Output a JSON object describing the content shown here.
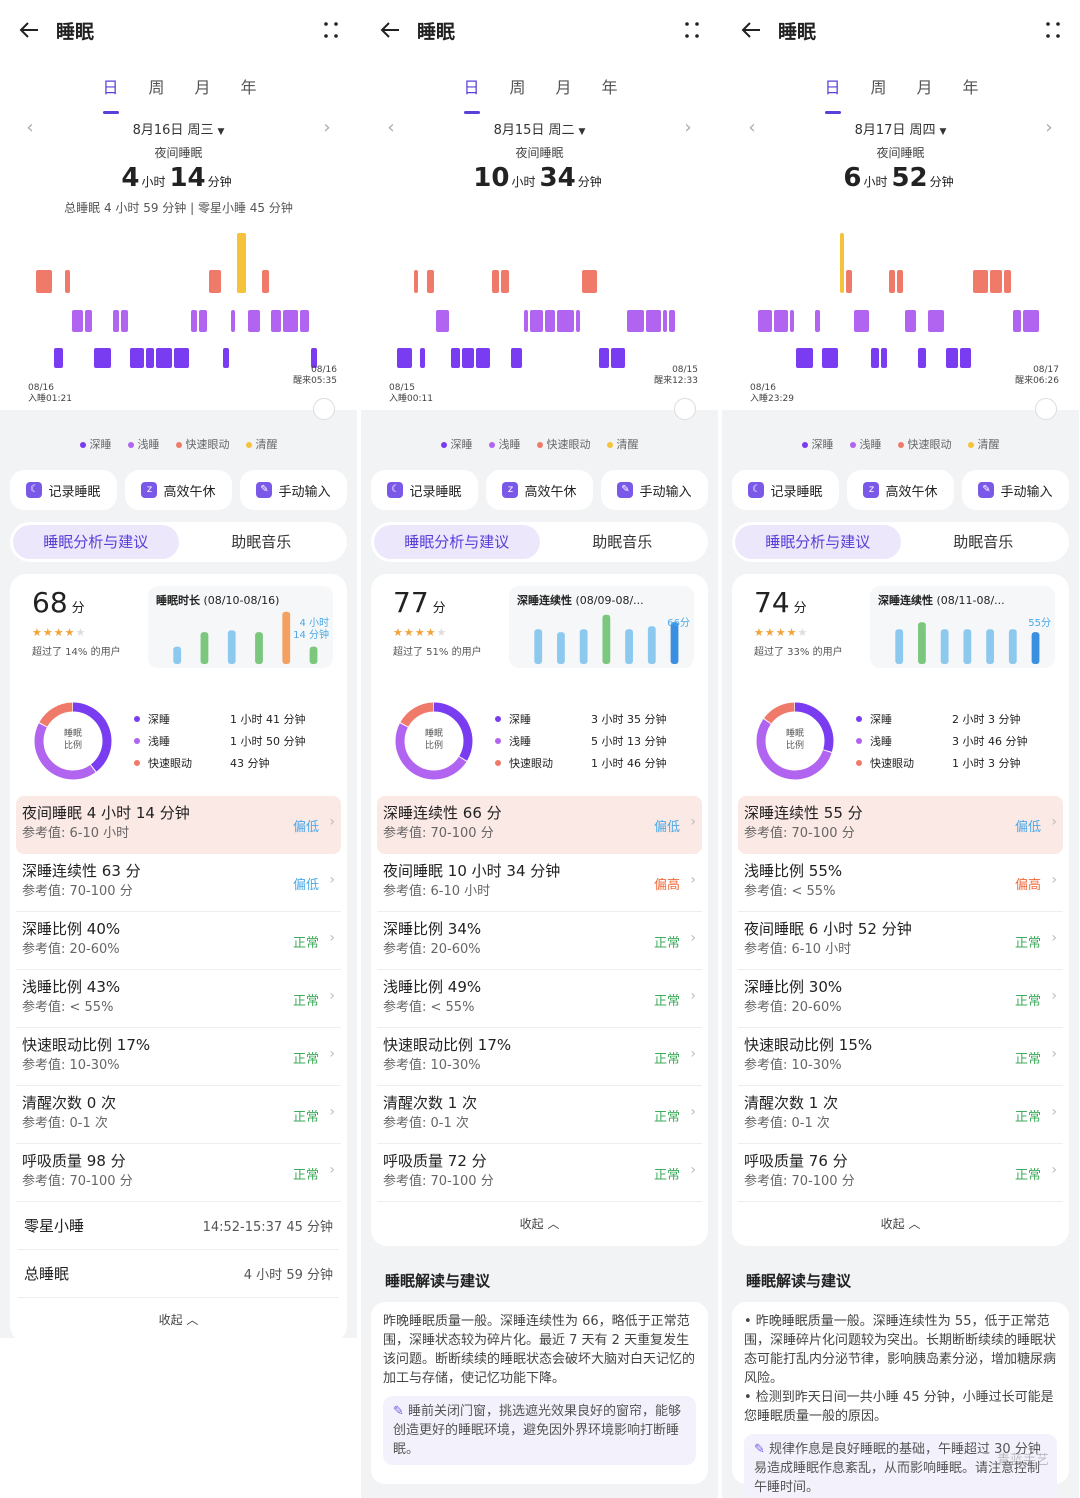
{
  "app": {
    "title": "睡眠",
    "tabs": [
      "日",
      "周",
      "月",
      "年"
    ],
    "legend": [
      "深睡",
      "浅睡",
      "快速眼动",
      "清醒"
    ],
    "buttons": [
      "记录睡眠",
      "高效午休",
      "手动输入"
    ],
    "seg": [
      "睡眠分析与建议",
      "助眠音乐"
    ],
    "ratio_center": "睡眠\n比例",
    "ratio_keys": [
      "深睡",
      "浅睡",
      "快速眼动"
    ],
    "fold": "收起",
    "advice_title": "睡眠解读与建议"
  },
  "colors": {
    "deep": "#7a3cf0",
    "light": "#b064f0",
    "rem": "#f07a6a",
    "awake": "#f5c33b",
    "accent": "#5a3fd8"
  },
  "panels": [
    {
      "date": "8月16日 周三",
      "night_label": "夜间睡眠",
      "h": "4",
      "hu": "小时",
      "m": "14",
      "mu": "分钟",
      "total": "总睡眠 4 小时 59 分钟 | 零星小睡 45 分钟",
      "start_d": "08/16",
      "start_t": "入睡01:21",
      "end_d": "08/16",
      "end_t": "醒来05:35",
      "score": "68",
      "score_unit": "分",
      "stars": 3.5,
      "beat": "超过了 14% 的用户",
      "mini_title": "睡眠时长",
      "mini_range": " (08/10-08/16)",
      "mini_note": "4 小时\n14 分钟",
      "mini_vals": [
        0.3,
        0.55,
        0.58,
        0.55,
        0.9,
        0.3
      ],
      "ratio_vals": [
        "1 小时 41 分钟",
        "1 小时 50 分钟",
        "43 分钟"
      ],
      "ratio_pct": [
        40,
        43,
        17
      ],
      "indicators": [
        {
          "name": "夜间睡眠",
          "val": "4 小时 14 分钟",
          "ref": "参考值: 6-10 小时",
          "status": "偏低",
          "cls": "low",
          "hl": true
        },
        {
          "name": "深睡连续性",
          "val": "63 分",
          "ref": "参考值: 70-100 分",
          "status": "偏低",
          "cls": "low"
        },
        {
          "name": "深睡比例",
          "val": "40%",
          "ref": "参考值: 20-60%",
          "status": "正常",
          "cls": "ok"
        },
        {
          "name": "浅睡比例",
          "val": "43%",
          "ref": "参考值: < 55%",
          "status": "正常",
          "cls": "ok"
        },
        {
          "name": "快速眼动比例",
          "val": "17%",
          "ref": "参考值: 10-30%",
          "status": "正常",
          "cls": "ok"
        },
        {
          "name": "清醒次数",
          "val": "0 次",
          "ref": "参考值: 0-1 次",
          "status": "正常",
          "cls": "ok"
        },
        {
          "name": "呼吸质量",
          "val": "98 分",
          "ref": "参考值: 70-100 分",
          "status": "正常",
          "cls": "ok"
        }
      ],
      "extra": [
        {
          "l": "零星小睡",
          "r": "14:52-15:37   45 分钟"
        },
        {
          "l": "总睡眠",
          "r": "4 小时 59 分钟"
        }
      ]
    },
    {
      "date": "8月15日 周二",
      "night_label": "夜间睡眠",
      "h": "10",
      "hu": "小时",
      "m": "34",
      "mu": "分钟",
      "total": "",
      "start_d": "08/15",
      "start_t": "入睡00:11",
      "end_d": "08/15",
      "end_t": "醒来12:33",
      "score": "77",
      "score_unit": "分",
      "stars": 4,
      "beat": "超过了 51% 的用户",
      "mini_title": "深睡连续性",
      "mini_range": " (08/09-08/...",
      "mini_note": "66分",
      "mini_vals": [
        0.6,
        0.55,
        0.6,
        0.85,
        0.6,
        0.65,
        0.72
      ],
      "ratio_vals": [
        "3 小时 35 分钟",
        "5 小时 13 分钟",
        "1 小时 46 分钟"
      ],
      "ratio_pct": [
        34,
        49,
        17
      ],
      "indicators": [
        {
          "name": "深睡连续性",
          "val": "66 分",
          "ref": "参考值: 70-100 分",
          "status": "偏低",
          "cls": "low",
          "hl": true
        },
        {
          "name": "夜间睡眠",
          "val": "10 小时 34 分钟",
          "ref": "参考值: 6-10 小时",
          "status": "偏高",
          "cls": "high"
        },
        {
          "name": "深睡比例",
          "val": "34%",
          "ref": "参考值: 20-60%",
          "status": "正常",
          "cls": "ok"
        },
        {
          "name": "浅睡比例",
          "val": "49%",
          "ref": "参考值: < 55%",
          "status": "正常",
          "cls": "ok"
        },
        {
          "name": "快速眼动比例",
          "val": "17%",
          "ref": "参考值: 10-30%",
          "status": "正常",
          "cls": "ok"
        },
        {
          "name": "清醒次数",
          "val": "1 次",
          "ref": "参考值: 0-1 次",
          "status": "正常",
          "cls": "ok"
        },
        {
          "name": "呼吸质量",
          "val": "72 分",
          "ref": "参考值: 70-100 分",
          "status": "正常",
          "cls": "ok"
        }
      ],
      "advice": "昨晚睡眠质量一般。深睡连续性为 66，略低于正常范围，深睡状态较为碎片化。最近 7 天有 2 天重复发生该问题。断断续续的睡眠状态会破坏大脑对白天记忆的加工与存储，使记忆功能下降。",
      "tip": "睡前关闭门窗，挑选遮光效果良好的窗帘，能够创造更好的睡眠环境，避免因外界环境影响打断睡眠。"
    },
    {
      "date": "8月17日 周四",
      "night_label": "夜间睡眠",
      "h": "6",
      "hu": "小时",
      "m": "52",
      "mu": "分钟",
      "total": "",
      "start_d": "08/16",
      "start_t": "入睡23:29",
      "end_d": "08/17",
      "end_t": "醒来06:26",
      "score": "74",
      "score_unit": "分",
      "stars": 4,
      "beat": "超过了 33% 的用户",
      "mini_title": "深睡连续性",
      "mini_range": " (08/11-08/...",
      "mini_note": "55分",
      "mini_vals": [
        0.6,
        0.72,
        0.6,
        0.6,
        0.6,
        0.6,
        0.55
      ],
      "ratio_vals": [
        "2 小时 3 分钟",
        "3 小时 46 分钟",
        "1 小时 3 分钟"
      ],
      "ratio_pct": [
        30,
        55,
        15
      ],
      "indicators": [
        {
          "name": "深睡连续性",
          "val": "55 分",
          "ref": "参考值: 70-100 分",
          "status": "偏低",
          "cls": "low",
          "hl": true
        },
        {
          "name": "浅睡比例",
          "val": "55%",
          "ref": "参考值: < 55%",
          "status": "偏高",
          "cls": "high"
        },
        {
          "name": "夜间睡眠",
          "val": "6 小时 52 分钟",
          "ref": "参考值: 6-10 小时",
          "status": "正常",
          "cls": "ok"
        },
        {
          "name": "深睡比例",
          "val": "30%",
          "ref": "参考值: 20-60%",
          "status": "正常",
          "cls": "ok"
        },
        {
          "name": "快速眼动比例",
          "val": "15%",
          "ref": "参考值: 10-30%",
          "status": "正常",
          "cls": "ok"
        },
        {
          "name": "清醒次数",
          "val": "1 次",
          "ref": "参考值: 0-1 次",
          "status": "正常",
          "cls": "ok"
        },
        {
          "name": "呼吸质量",
          "val": "76 分",
          "ref": "参考值: 70-100 分",
          "status": "正常",
          "cls": "ok"
        }
      ],
      "advice": "• 昨晚睡眠质量一般。深睡连续性为 55，低于正常范围，深睡碎片化问题较为突出。长期断断续续的睡眠状态可能打乱内分泌节律，影响胰岛素分泌，增加糖尿病风险。\n• 检测到昨天日间一共小睡 45 分钟，小睡过长可能是您睡眠质量一般的原因。",
      "tip": "规律作息是良好睡眠的基础，午睡超过 30 分钟易造成睡眠作息紊乱，从而影响睡眠。请注意控制午睡时间。"
    }
  ],
  "watermark": "青蓝手艺"
}
